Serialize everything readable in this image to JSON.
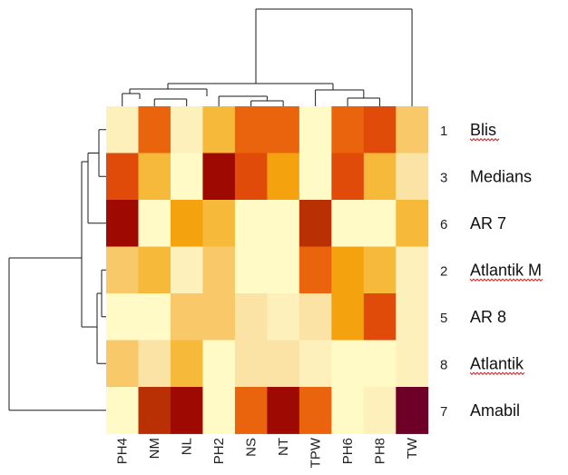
{
  "chart_data": {
    "type": "heatmap",
    "columns": [
      "PH4",
      "NM",
      "NL",
      "PH2",
      "NS",
      "NT",
      "TPW",
      "PH6",
      "PH8",
      "TW"
    ],
    "rows": [
      {
        "num": "1",
        "name": "Blis"
      },
      {
        "num": "3",
        "name": "Medians"
      },
      {
        "num": "6",
        "name": "AR 7"
      },
      {
        "num": "2",
        "name": "Atlantik M"
      },
      {
        "num": "5",
        "name": "AR 8"
      },
      {
        "num": "8",
        "name": "Atlantik"
      },
      {
        "num": "7",
        "name": "Amabil"
      }
    ],
    "values": [
      [
        1,
        6,
        1,
        4,
        6,
        6,
        0,
        6,
        7,
        3
      ],
      [
        7,
        4,
        0,
        9,
        7,
        5,
        0,
        7,
        4,
        2
      ],
      [
        9,
        0,
        5,
        4,
        0,
        0,
        8,
        0,
        0,
        4
      ],
      [
        3,
        4,
        1,
        3,
        0,
        0,
        6,
        5,
        4,
        1
      ],
      [
        0,
        0,
        3,
        3,
        2,
        1,
        2,
        5,
        7,
        1
      ],
      [
        3,
        2,
        4,
        0,
        2,
        2,
        1,
        0,
        0,
        1
      ],
      [
        0,
        8,
        9,
        0,
        6,
        9,
        6,
        0,
        1,
        10
      ]
    ],
    "palette": [
      "#fffac6",
      "#fdf0bb",
      "#fae3a5",
      "#f8c869",
      "#f6b93a",
      "#f5a20f",
      "#e9640c",
      "#e14b09",
      "#b93004",
      "#9e0901",
      "#6e0028"
    ],
    "spellcheck_underlined_rows": [
      0,
      3,
      5
    ]
  }
}
